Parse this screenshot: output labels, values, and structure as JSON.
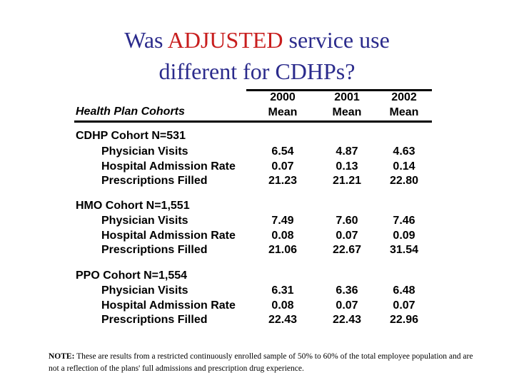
{
  "title": {
    "part1": "Was ",
    "highlight": "ADJUSTED",
    "part2": " service use",
    "line2": "different for CDHPs?",
    "highlight_color": "#c81e1e",
    "text_color": "#2b2b8c"
  },
  "table": {
    "header": {
      "row_label": "Health Plan Cohorts",
      "columns": [
        {
          "year": "2000",
          "stat": "Mean"
        },
        {
          "year": "2001",
          "stat": "Mean"
        },
        {
          "year": "2002",
          "stat": "Mean"
        }
      ]
    },
    "cohorts": [
      {
        "name": "CDHP Cohort N=531",
        "rows": [
          {
            "label": "Physician Visits",
            "values": [
              "6.54",
              "4.87",
              "4.63"
            ]
          },
          {
            "label": "Hospital Admission Rate",
            "values": [
              "0.07",
              "0.13",
              "0.14"
            ]
          },
          {
            "label": "Prescriptions Filled",
            "values": [
              "21.23",
              "21.21",
              "22.80"
            ]
          }
        ]
      },
      {
        "name": "HMO Cohort N=1,551",
        "rows": [
          {
            "label": "Physician Visits",
            "values": [
              "7.49",
              "7.60",
              "7.46"
            ]
          },
          {
            "label": "Hospital Admission Rate",
            "values": [
              "0.08",
              "0.07",
              "0.09"
            ]
          },
          {
            "label": "Prescriptions Filled",
            "values": [
              "21.06",
              "22.67",
              "31.54"
            ]
          }
        ]
      },
      {
        "name": "PPO Cohort N=1,554",
        "rows": [
          {
            "label": "Physician Visits",
            "values": [
              "6.31",
              "6.36",
              "6.48"
            ]
          },
          {
            "label": "Hospital Admission Rate",
            "values": [
              "0.08",
              "0.07",
              "0.07"
            ]
          },
          {
            "label": "Prescriptions Filled",
            "values": [
              "22.43",
              "22.43",
              "22.96"
            ]
          }
        ]
      }
    ]
  },
  "note": {
    "label": "NOTE:",
    "text": " These are results from a restricted continuously enrolled sample of 50% to 60% of the total employee population and are not a reflection of the plans' full admissions and prescription drug experience."
  }
}
